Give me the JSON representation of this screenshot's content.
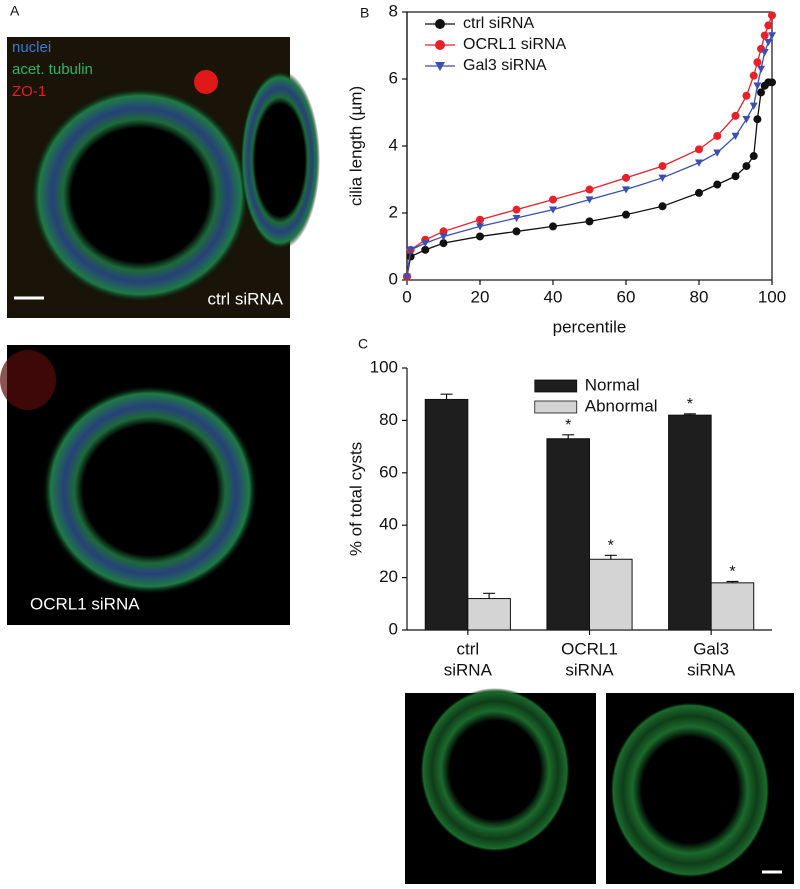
{
  "panel_labels": [
    "A",
    "B",
    "C"
  ],
  "images": [
    {
      "channels": [
        {
          "label": "nuclei",
          "color": "#3a7bd5"
        },
        {
          "label": "acet. tubulin",
          "color": "#2fb36a"
        },
        {
          "label": "ZO-1",
          "color": "#e02020"
        }
      ],
      "caption": "ctrl siRNA"
    },
    {
      "caption": "OCRL1 siRNA"
    }
  ],
  "chart_data": [
    {
      "type": "line",
      "xlabel": "percentile",
      "ylabel": "cilia length (µm)",
      "x": [
        0,
        1,
        5,
        10,
        20,
        30,
        40,
        50,
        60,
        70,
        80,
        85,
        90,
        93,
        95,
        96,
        97,
        98,
        99,
        100
      ],
      "xlim": [
        0,
        100
      ],
      "xticks": [
        0,
        20,
        40,
        60,
        80,
        100
      ],
      "ylim": [
        0,
        8
      ],
      "yticks": [
        0,
        2,
        4,
        6,
        8
      ],
      "legend": "upper left",
      "series": [
        {
          "name": "ctrl siRNA",
          "color": "#111111",
          "marker": "circle",
          "values": [
            0.1,
            0.7,
            0.9,
            1.1,
            1.3,
            1.45,
            1.6,
            1.75,
            1.95,
            2.2,
            2.6,
            2.85,
            3.1,
            3.4,
            3.7,
            4.8,
            5.6,
            5.8,
            5.9,
            5.9
          ]
        },
        {
          "name": "OCRL1 siRNA",
          "color": "#e8202a",
          "marker": "circle",
          "values": [
            0.1,
            0.9,
            1.2,
            1.45,
            1.8,
            2.1,
            2.4,
            2.7,
            3.05,
            3.4,
            3.9,
            4.3,
            4.9,
            5.5,
            6.1,
            6.5,
            6.9,
            7.3,
            7.6,
            7.9
          ]
        },
        {
          "name": "Gal3 siRNA",
          "color": "#3a4fb0",
          "marker": "triangle-down",
          "values": [
            0.1,
            0.9,
            1.1,
            1.3,
            1.6,
            1.85,
            2.1,
            2.4,
            2.7,
            3.05,
            3.5,
            3.8,
            4.3,
            4.8,
            5.2,
            5.8,
            6.3,
            6.8,
            7.1,
            7.3
          ]
        }
      ]
    },
    {
      "type": "bar",
      "ylabel": "% of total cysts",
      "categories": [
        [
          "ctrl",
          "siRNA"
        ],
        [
          "OCRL1",
          "siRNA"
        ],
        [
          "Gal3",
          "siRNA"
        ]
      ],
      "ylim": [
        0,
        100
      ],
      "yticks": [
        0,
        20,
        40,
        60,
        80,
        100
      ],
      "legend": "upper center",
      "series": [
        {
          "name": "Normal",
          "color": "#1e1e1e",
          "values": [
            88,
            73,
            82
          ],
          "errors": [
            2,
            1.5,
            0.5
          ]
        },
        {
          "name": "Abnormal",
          "color": "#d4d4d4",
          "values": [
            12,
            27,
            18
          ],
          "errors": [
            2,
            1.5,
            0.5
          ]
        }
      ],
      "annotations": [
        {
          "text": "*",
          "series_index": 0,
          "category_index": 1
        },
        {
          "text": "*",
          "series_index": 0,
          "category_index": 2
        },
        {
          "text": "*",
          "series_index": 1,
          "category_index": 1
        },
        {
          "text": "*",
          "series_index": 1,
          "category_index": 2
        }
      ]
    }
  ]
}
